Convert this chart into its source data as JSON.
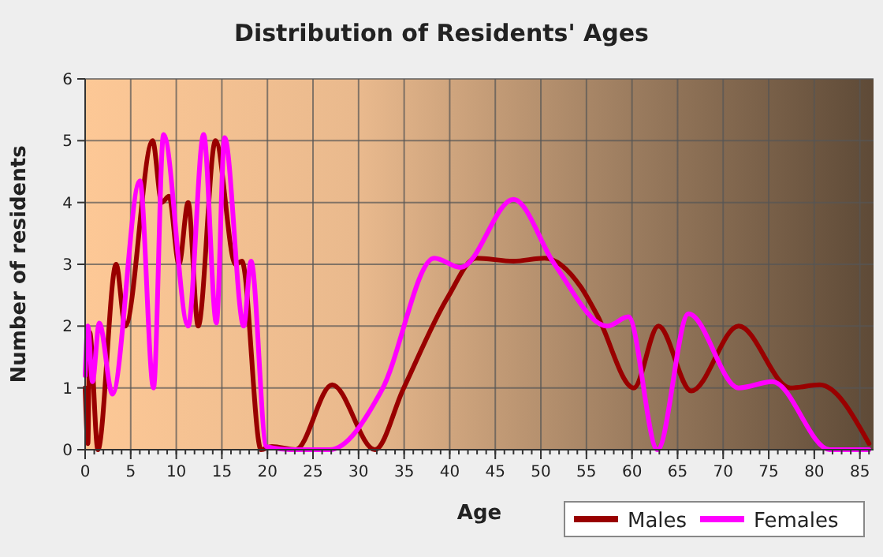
{
  "chart_data": {
    "type": "line",
    "title": "Distribution of Residents' Ages",
    "xlabel": "Age",
    "ylabel": "Number of residents",
    "xlim": [
      0,
      86.5
    ],
    "xticks": [
      0,
      5,
      10,
      15,
      20,
      25,
      30,
      35,
      40,
      45,
      50,
      55,
      60,
      65,
      70,
      75,
      80,
      85
    ],
    "ylim": [
      0,
      6
    ],
    "yticks": [
      0,
      1,
      2,
      3,
      4,
      5,
      6
    ],
    "grid": true,
    "legend": "bottom right",
    "marker": "none",
    "line_style": "solid",
    "series": [
      {
        "name": "Males",
        "color": "#990000",
        "x": [
          0,
          0.3,
          0.5,
          1.4,
          3.4,
          4.4,
          7.4,
          8.4,
          9.2,
          10.3,
          11.3,
          12.4,
          14.3,
          16.5,
          17.2,
          19.3,
          20.5,
          23.1,
          27.1,
          31.8,
          34.9,
          39.8,
          42.9,
          47,
          50.4,
          54.4,
          56.2,
          60.2,
          62.9,
          66.5,
          71.7,
          77.4,
          80.6,
          86
        ],
        "values": [
          1,
          0.1,
          1.9,
          0,
          3,
          2,
          5,
          4,
          4.1,
          3,
          4,
          2,
          5,
          3,
          3.05,
          0,
          0.05,
          0,
          1.05,
          0,
          0.98,
          2.47,
          3.1,
          3.05,
          3.1,
          2.63,
          2.17,
          1,
          2,
          0.95,
          2,
          1,
          1.05,
          0.1
        ]
      },
      {
        "name": "Females",
        "color": "#ff00ff",
        "x": [
          0,
          0.3,
          0.8,
          1.55,
          3,
          6,
          7.5,
          8.6,
          11.3,
          13,
          14.4,
          15.3,
          17.4,
          18.2,
          19.9,
          23,
          26.8,
          32.6,
          38.3,
          41.2,
          47,
          51.5,
          57.3,
          59.6,
          62.8,
          66.2,
          71.7,
          75.4,
          81.7,
          86
        ],
        "values": [
          1.2,
          2,
          1.1,
          2.05,
          0.9,
          4.35,
          1,
          5.1,
          2,
          5.1,
          2.05,
          5.05,
          2,
          3.05,
          0.05,
          0,
          0,
          0.98,
          3.1,
          2.95,
          4.05,
          3,
          2,
          2.15,
          0,
          2.2,
          1,
          1.1,
          0,
          0
        ]
      }
    ]
  }
}
